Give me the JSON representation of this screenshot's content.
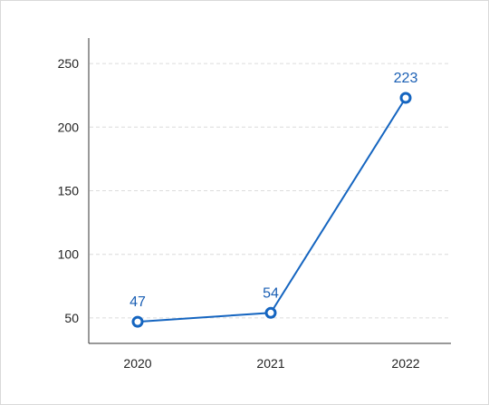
{
  "chart_data": {
    "type": "line",
    "categories": [
      "2020",
      "2021",
      "2022"
    ],
    "series": [
      {
        "values": [
          47,
          54,
          223
        ]
      }
    ],
    "data_labels": [
      "47",
      "54",
      "223"
    ],
    "y_ticks": [
      50,
      100,
      150,
      200,
      250
    ],
    "ylim": [
      30,
      270
    ],
    "title": "",
    "xlabel": "",
    "ylabel": "",
    "grid": true,
    "line_color": "#1565c0",
    "label_color": "#1a5fb4",
    "grid_color": "#dcdcdc"
  }
}
